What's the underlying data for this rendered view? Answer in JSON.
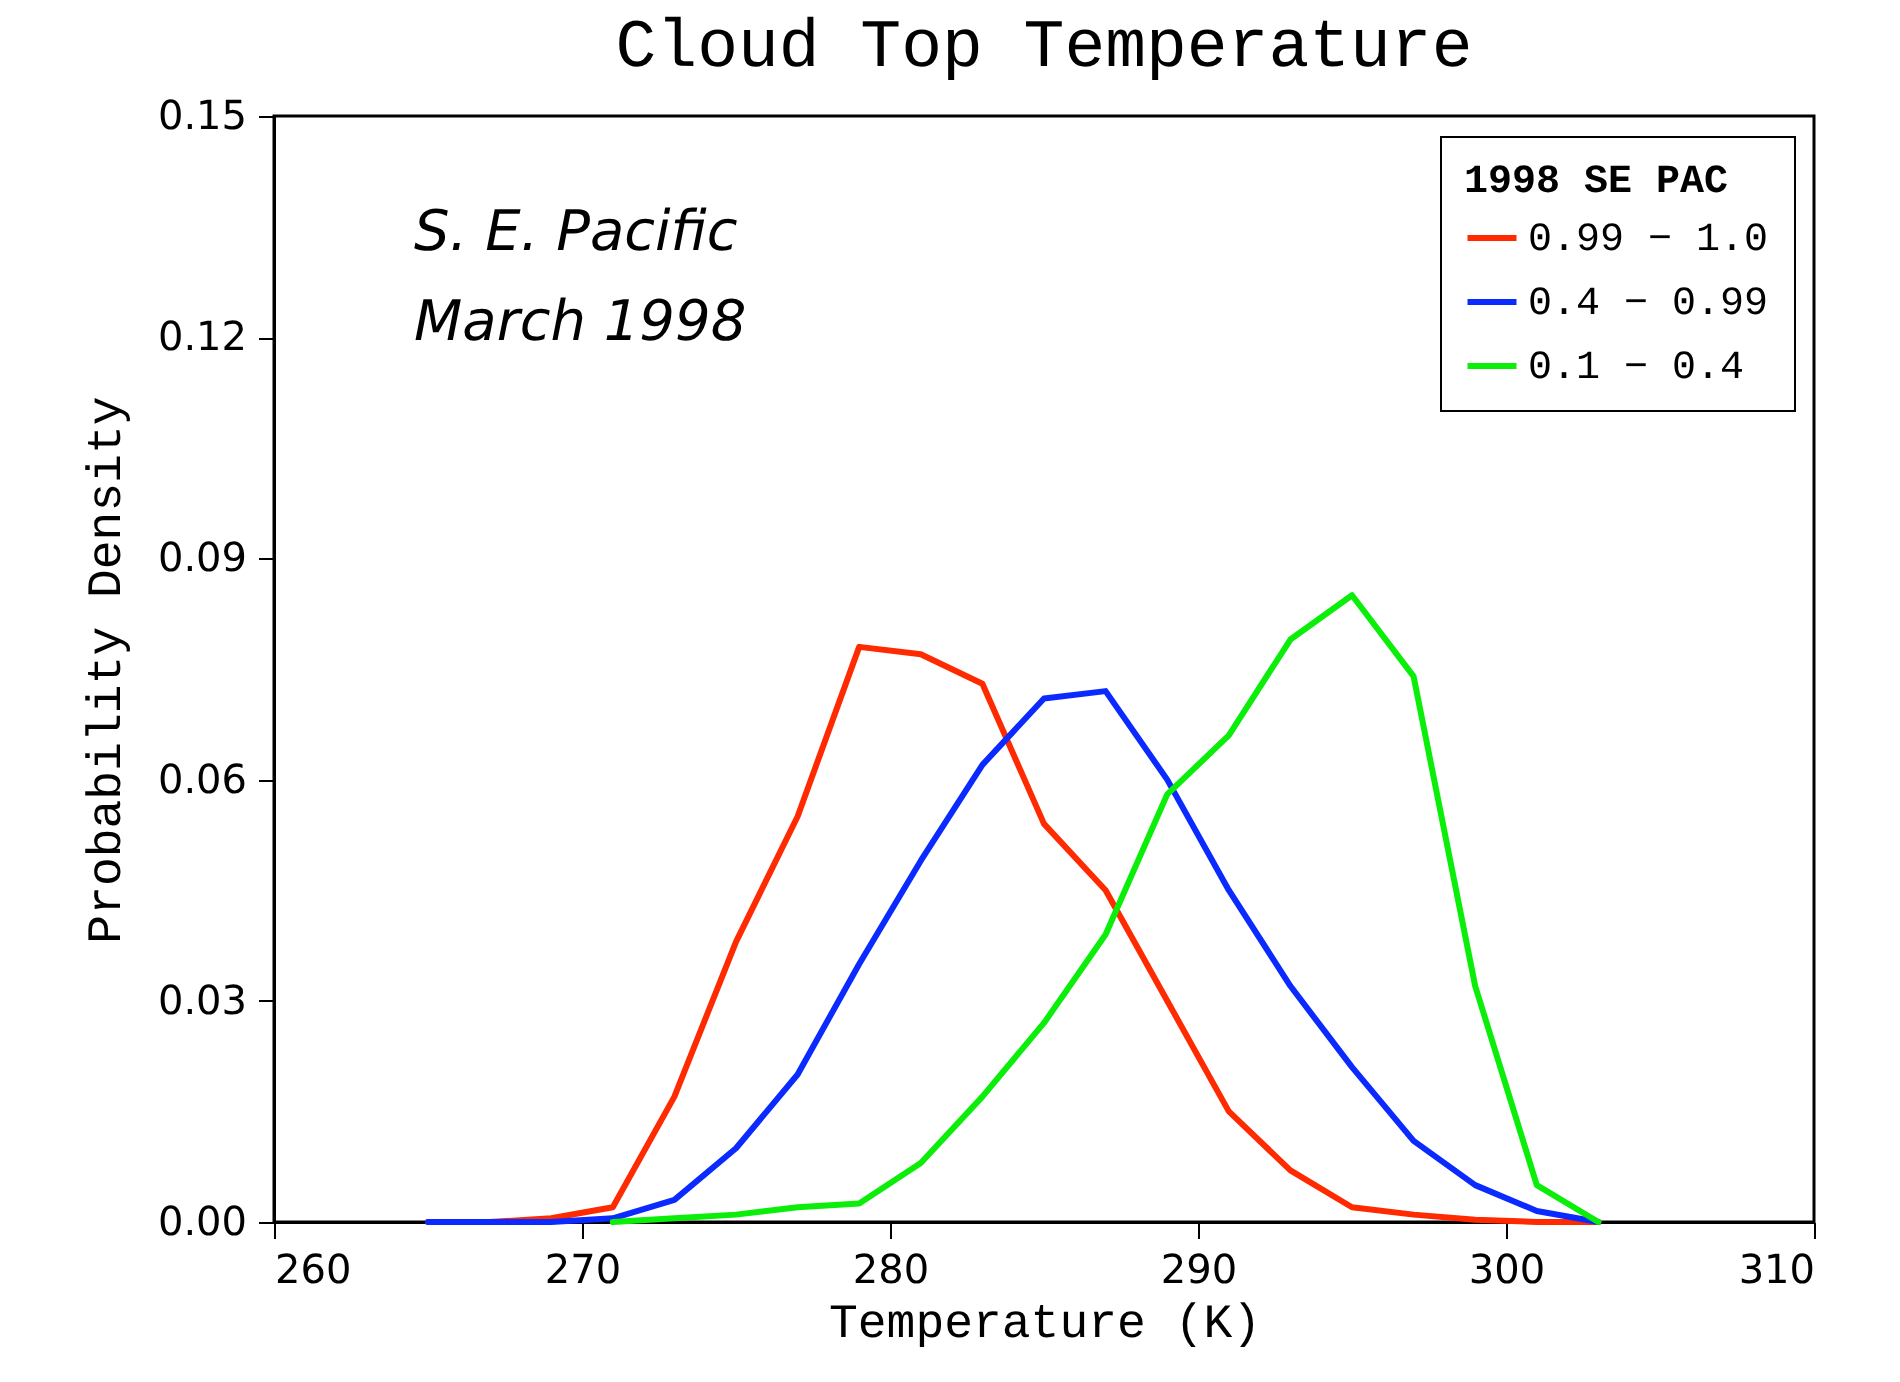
{
  "chart_data": {
    "type": "line",
    "title": "Cloud Top Temperature",
    "xlabel": "Temperature (K)",
    "ylabel": "Probability Density",
    "legend_title": "1998 SE PAC",
    "legend": "top right",
    "grid": false,
    "marker": "none",
    "line_style": "solid",
    "annotations": [
      "S. E. Pacific",
      "March 1998"
    ],
    "x": [
      265,
      267,
      269,
      271,
      273,
      275,
      277,
      279,
      281,
      283,
      285,
      287,
      289,
      291,
      293,
      295,
      297,
      299,
      301,
      303
    ],
    "xlim": [
      260,
      310
    ],
    "xticks": [
      260,
      270,
      280,
      290,
      300,
      310
    ],
    "ylim": [
      0,
      0.15
    ],
    "yticks": [
      {
        "value": 0,
        "label": "0.00"
      },
      {
        "value": 0.03,
        "label": "0.03"
      },
      {
        "value": 0.06,
        "label": "0.06"
      },
      {
        "value": 0.09,
        "label": "0.09"
      },
      {
        "value": 0.12,
        "label": "0.12"
      },
      {
        "value": 0.15,
        "label": "0.15"
      }
    ],
    "series": [
      {
        "name": "0.99 − 1.0",
        "color": "#ff2a00",
        "values": [
          0,
          0,
          0.0005,
          0.002,
          0.017,
          0.038,
          0.055,
          0.078,
          0.077,
          0.073,
          0.054,
          0.045,
          0.03,
          0.015,
          0.007,
          0.002,
          0.001,
          0.0003,
          0,
          0
        ]
      },
      {
        "name": "0.4 − 0.99",
        "color": "#0a2aff",
        "values": [
          0,
          0,
          0,
          0.0005,
          0.003,
          0.01,
          0.02,
          0.035,
          0.049,
          0.062,
          0.071,
          0.072,
          0.06,
          0.045,
          0.032,
          0.021,
          0.011,
          0.005,
          0.0015,
          0
        ]
      },
      {
        "name": "0.1 − 0.4",
        "color": "#0aee0a",
        "values": [
          null,
          null,
          null,
          0,
          0.0005,
          0.001,
          0.002,
          0.0025,
          0.008,
          0.017,
          0.027,
          0.039,
          0.058,
          0.066,
          0.079,
          0.085,
          0.074,
          0.032,
          0.005,
          0
        ]
      }
    ]
  }
}
